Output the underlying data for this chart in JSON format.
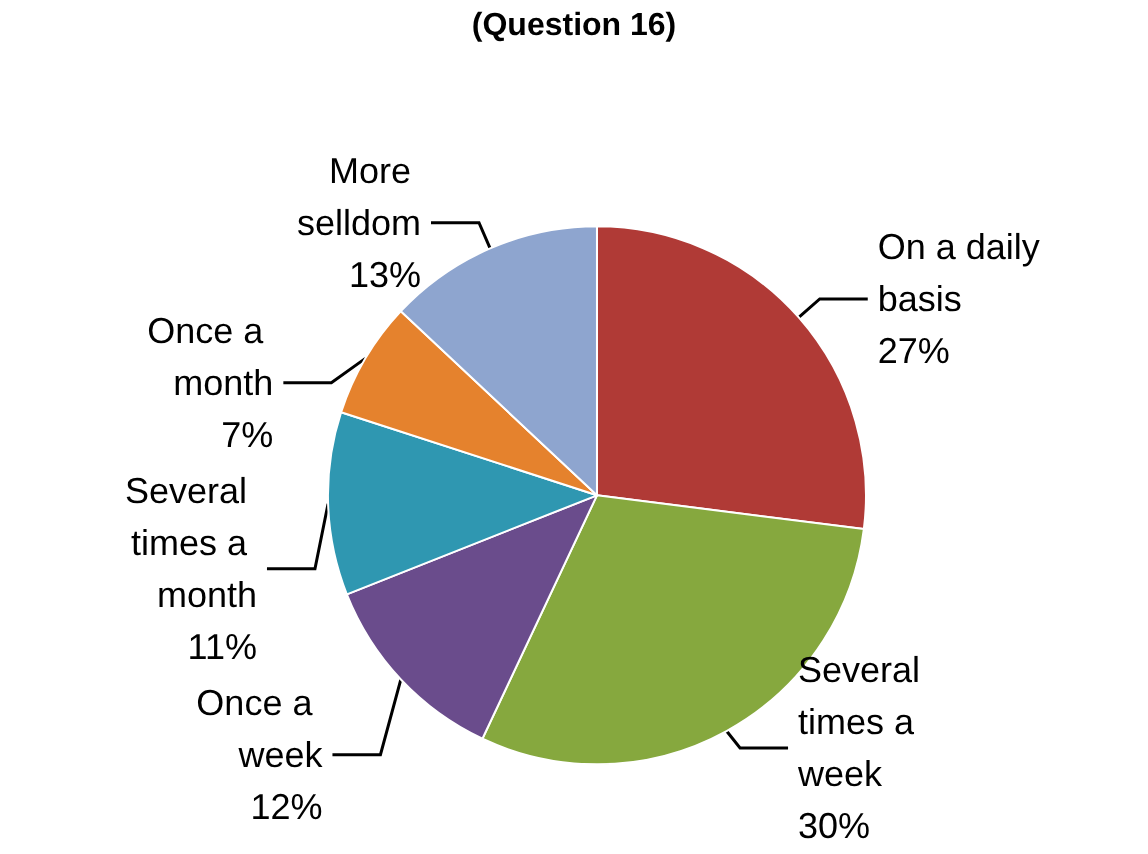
{
  "chart_data": {
    "type": "pie",
    "title": "(Question 16)",
    "categories": [
      "On a daily basis",
      "Several times a week",
      "Once a week",
      "Several times a month",
      "Once a month",
      "More selldom"
    ],
    "values": [
      27,
      30,
      12,
      11,
      7,
      13
    ],
    "value_labels": [
      "27%",
      "30%",
      "12%",
      "11%",
      "7%",
      "13%"
    ],
    "colors": [
      "#b03a36",
      "#86a83e",
      "#6a4c8c",
      "#2f97b1",
      "#e5822d",
      "#8ea5cf"
    ],
    "legend": false
  }
}
